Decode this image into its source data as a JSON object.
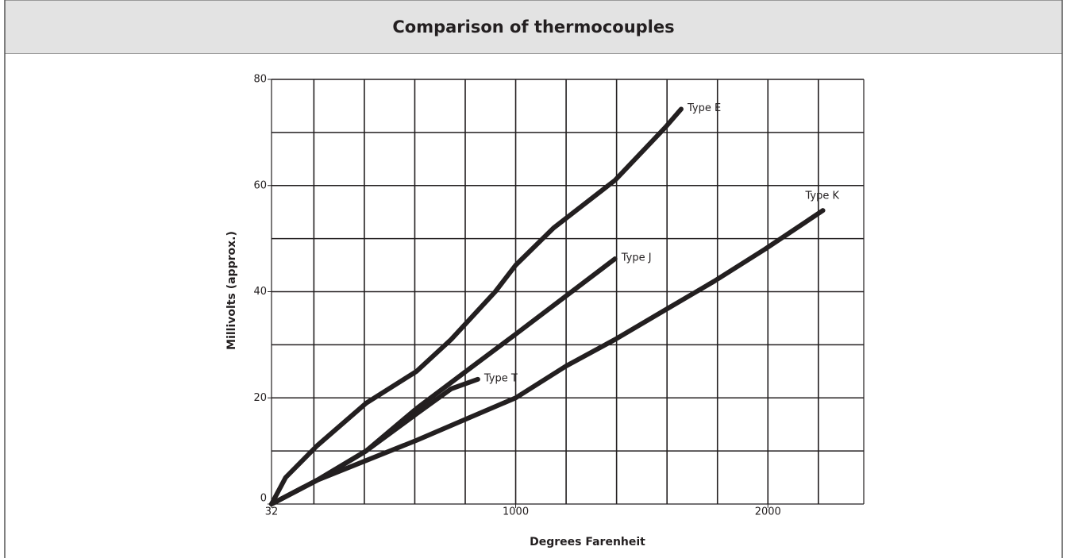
{
  "chart_data": {
    "type": "line",
    "title": "Comparison of thermocouples",
    "x_label": "Degrees Farenheit",
    "y_label": "Millivolts (approx.)",
    "xlim": [
      32,
      2380
    ],
    "ylim": [
      0,
      80
    ],
    "xticks": [
      32,
      1000,
      2000
    ],
    "yticks": [
      0,
      20,
      40,
      60,
      80
    ],
    "xgrid": [
      200,
      400,
      600,
      800,
      1000,
      1200,
      1400,
      1600,
      1800,
      2000,
      2200
    ],
    "ygrid": [
      10,
      20,
      30,
      40,
      50,
      60,
      70,
      80
    ],
    "grid": true,
    "series": [
      {
        "name": "Type E",
        "color": "#231f20",
        "x": [
          32,
          88,
          213,
          407,
          607,
          744,
          919,
          1000,
          1150,
          1394,
          1594,
          1656
        ],
        "values": [
          0,
          5,
          11,
          19,
          25,
          31,
          40,
          45,
          52,
          61,
          71,
          74.4
        ]
      },
      {
        "name": "Type J",
        "color": "#231f20",
        "x": [
          32,
          213,
          407,
          607,
          803,
          1000,
          1394
        ],
        "values": [
          0,
          4.5,
          10,
          18,
          25,
          32,
          46.2
        ]
      },
      {
        "name": "Type T",
        "color": "#231f20",
        "x": [
          32,
          213,
          407,
          607,
          744,
          850
        ],
        "values": [
          0,
          4.5,
          10,
          17,
          21.7,
          23.5
        ]
      },
      {
        "name": "Type K",
        "color": "#231f20",
        "x": [
          32,
          213,
          407,
          607,
          803,
          1000,
          1200,
          1394,
          1594,
          1788,
          1988,
          2218
        ],
        "values": [
          0,
          4.5,
          8.2,
          12,
          16,
          20,
          26,
          31,
          36.6,
          42,
          48,
          55.3
        ]
      }
    ]
  }
}
